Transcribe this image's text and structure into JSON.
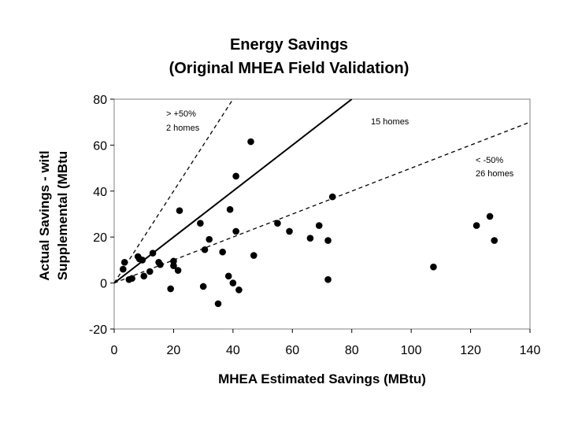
{
  "chart_data": {
    "type": "scatter",
    "title": [
      "Energy Savings",
      "(Original MHEA Field Validation)"
    ],
    "xlabel": "MHEA Estimated Savings (MBtu)",
    "ylabel": [
      "Actual Savings - witl",
      "Supplemental (MBtu"
    ],
    "xlim": [
      0,
      140
    ],
    "ylim": [
      -20,
      80
    ],
    "xticks": [
      0,
      20,
      40,
      60,
      80,
      100,
      120,
      140
    ],
    "yticks": [
      -20,
      0,
      20,
      40,
      60,
      80
    ],
    "grid": false,
    "series": [
      {
        "name": "homes",
        "x": [
          3,
          3.5,
          5,
          6,
          8,
          8.5,
          9.5,
          10,
          12,
          13,
          15,
          15.5,
          19,
          20,
          20,
          21.5,
          22,
          29,
          30,
          30.5,
          32,
          35,
          36.5,
          38.5,
          39,
          40,
          41,
          41,
          42,
          46,
          47,
          55,
          59,
          66,
          69,
          72,
          72,
          73.5,
          107.5,
          122,
          126.5,
          128
        ],
        "y": [
          6,
          9,
          1.5,
          2,
          11.5,
          10.5,
          10,
          3,
          5,
          13,
          9,
          8,
          -2.5,
          9.5,
          7.5,
          5.5,
          31.5,
          26,
          -1.5,
          14.5,
          19,
          -9,
          13.5,
          3,
          32,
          0,
          22.5,
          46.5,
          -3,
          61.5,
          12,
          26,
          22.5,
          19.5,
          25,
          1.5,
          18.5,
          37.5,
          7,
          25,
          29,
          18.5
        ]
      }
    ],
    "reference_lines": [
      {
        "name": "plus-50-line",
        "style": "dashed",
        "slope": 2.0
      },
      {
        "name": "one-to-one-line",
        "style": "solid",
        "slope": 1.0
      },
      {
        "name": "minus-50-line",
        "style": "dashed",
        "slope": 0.5
      }
    ],
    "annotations": {
      "upper_label": "> +50%",
      "upper_count": "2 homes",
      "middle_count": "15 homes",
      "lower_label": "< -50%",
      "lower_count": "26 homes"
    }
  }
}
